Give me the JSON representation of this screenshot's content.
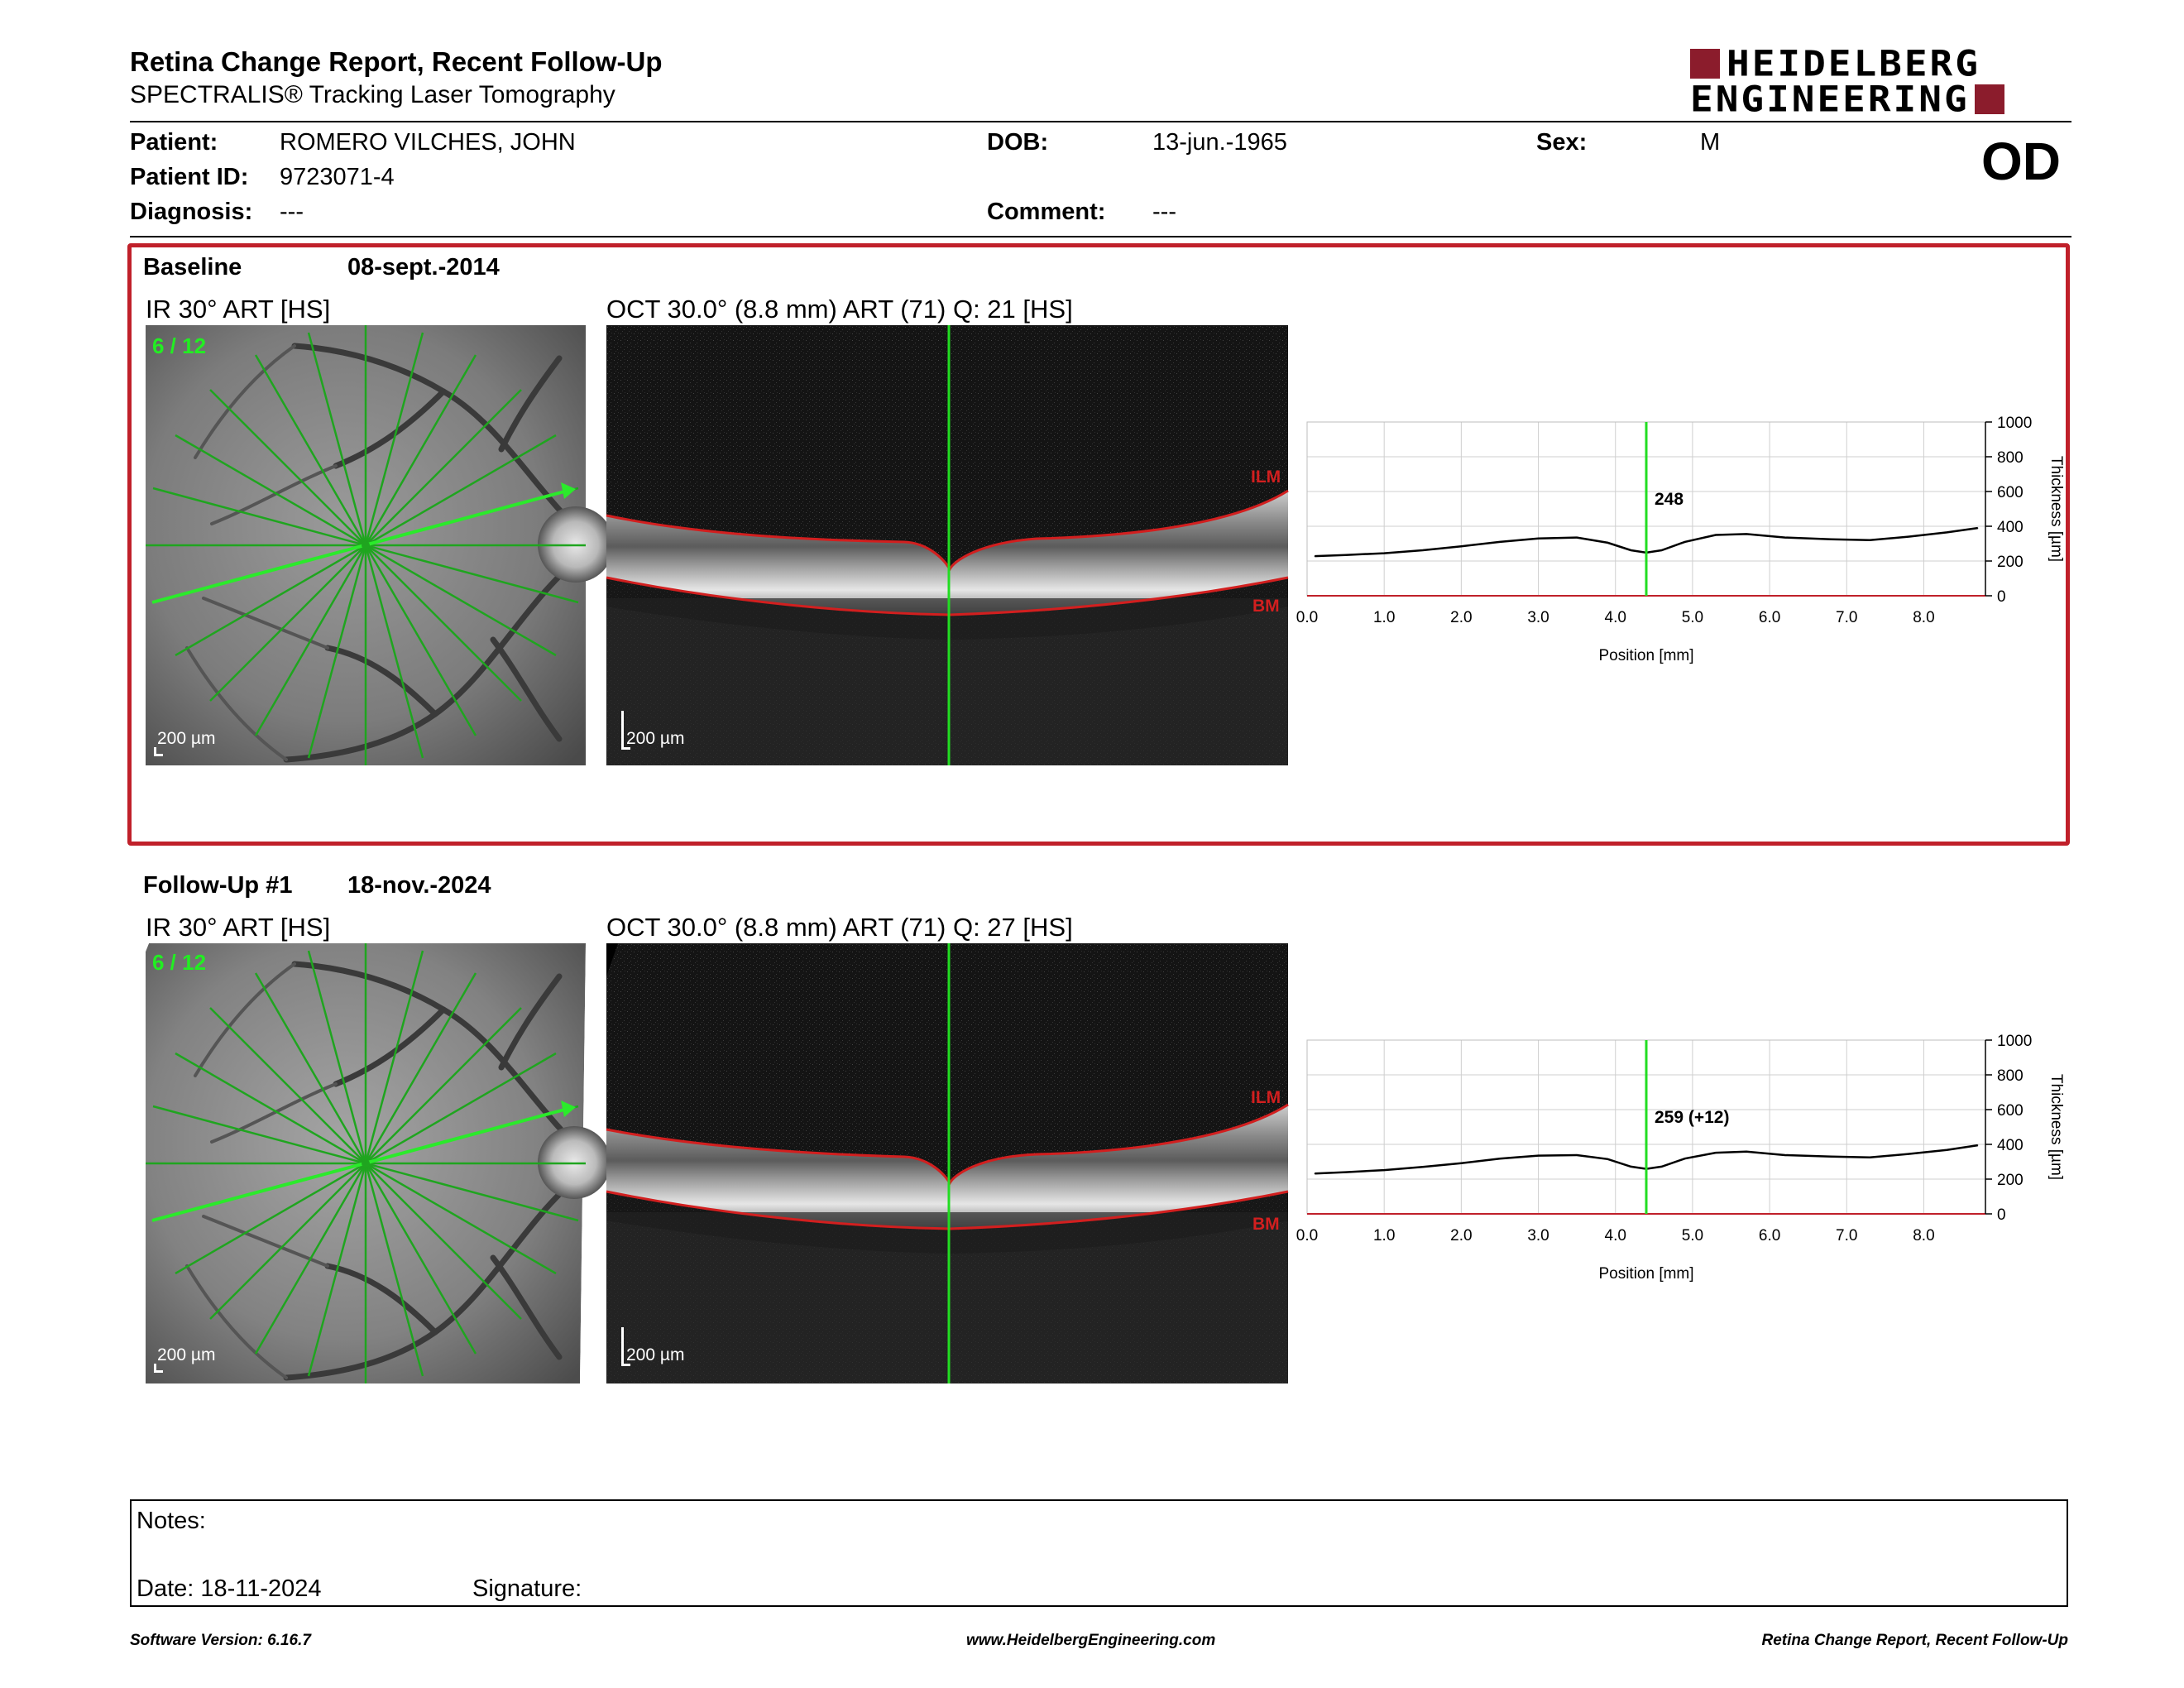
{
  "header": {
    "title": "Retina Change Report, Recent Follow-Up",
    "subtitle": "SPECTRALIS® Tracking Laser Tomography",
    "logo_line1": "HEIDELBERG",
    "logo_line2": "ENGINEERING",
    "eye": "OD"
  },
  "patient": {
    "patient_label": "Patient:",
    "patient_value": "ROMERO VILCHES, JOHN",
    "id_label": "Patient ID:",
    "id_value": "9723071-4",
    "diagnosis_label": "Diagnosis:",
    "diagnosis_value": "---",
    "dob_label": "DOB:",
    "dob_value": "13-jun.-1965",
    "comment_label": "Comment:",
    "comment_value": "---",
    "sex_label": "Sex:",
    "sex_value": "M"
  },
  "baseline": {
    "label": "Baseline",
    "date": "08-sept.-2014",
    "ir_title": "IR 30° ART [HS]",
    "oct_title": "OCT 30.0° (8.8 mm) ART (71) Q: 21 [HS]",
    "scan_counter": "6 / 12",
    "scale_bar": "200 µm",
    "ilm": "ILM",
    "bm": "BM"
  },
  "followup": {
    "label": "Follow-Up #1",
    "date": "18-nov.-2024",
    "ir_title": "IR 30° ART [HS]",
    "oct_title": "OCT 30.0° (8.8 mm) ART (71) Q: 27 [HS]",
    "scan_counter": "6 / 12",
    "scale_bar": "200 µm",
    "ilm": "ILM",
    "bm": "BM"
  },
  "chart_data": [
    {
      "type": "line",
      "xlabel": "Position [mm]",
      "ylabel": "Thickness [µm]",
      "xlim": [
        0,
        8.8
      ],
      "ylim": [
        0,
        1000
      ],
      "xticks": [
        "0.0",
        "1.0",
        "2.0",
        "3.0",
        "4.0",
        "5.0",
        "6.0",
        "7.0",
        "8.0"
      ],
      "yticks": [
        "0",
        "200",
        "400",
        "600",
        "800",
        "1000"
      ],
      "grid": true,
      "cursor_x": 4.4,
      "cursor_label": "248",
      "x": [
        0.1,
        0.5,
        1.0,
        1.5,
        2.0,
        2.5,
        3.0,
        3.5,
        3.9,
        4.2,
        4.4,
        4.6,
        4.9,
        5.3,
        5.7,
        6.2,
        6.8,
        7.3,
        7.8,
        8.3,
        8.7
      ],
      "y": [
        228,
        235,
        245,
        262,
        285,
        310,
        330,
        335,
        305,
        262,
        248,
        262,
        310,
        350,
        355,
        335,
        325,
        320,
        340,
        365,
        390
      ]
    },
    {
      "type": "line",
      "xlabel": "Position [mm]",
      "ylabel": "Thickness [µm]",
      "xlim": [
        0,
        8.8
      ],
      "ylim": [
        0,
        1000
      ],
      "xticks": [
        "0.0",
        "1.0",
        "2.0",
        "3.0",
        "4.0",
        "5.0",
        "6.0",
        "7.0",
        "8.0"
      ],
      "yticks": [
        "0",
        "200",
        "400",
        "600",
        "800",
        "1000"
      ],
      "grid": true,
      "cursor_x": 4.4,
      "cursor_label": "259 (+12)",
      "x": [
        0.1,
        0.5,
        1.0,
        1.5,
        2.0,
        2.5,
        3.0,
        3.5,
        3.9,
        4.2,
        4.4,
        4.6,
        4.9,
        5.3,
        5.7,
        6.2,
        6.8,
        7.3,
        7.8,
        8.3,
        8.7
      ],
      "y": [
        232,
        240,
        252,
        270,
        292,
        318,
        335,
        338,
        315,
        272,
        259,
        272,
        318,
        352,
        358,
        338,
        330,
        325,
        345,
        368,
        395
      ]
    }
  ],
  "notes": {
    "notes_label": "Notes:",
    "date_label": "Date: 18-11-2024",
    "signature_label": "Signature:"
  },
  "footer": {
    "software": "Software Version: 6.16.7",
    "website": "www.HeidelbergEngineering.com",
    "report": "Retina Change Report, Recent Follow-Up"
  },
  "colors": {
    "accent_red": "#c0202a",
    "logo_red": "#8b1c2c",
    "scan_green": "#22cc22",
    "segment_red": "#d21f1f"
  }
}
